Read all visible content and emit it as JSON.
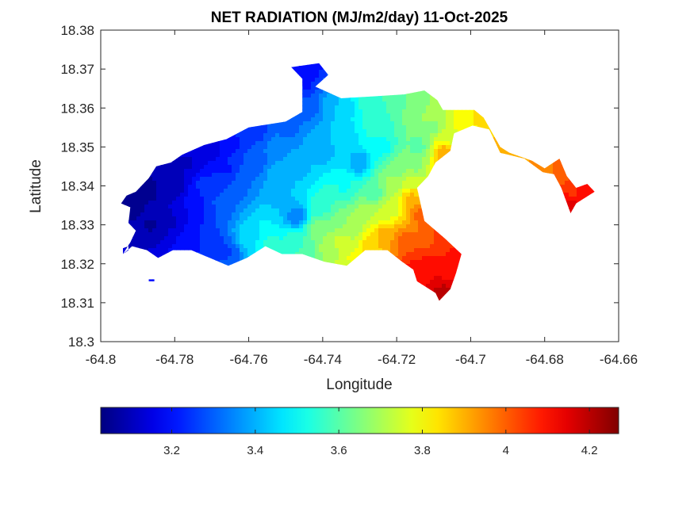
{
  "chart_data": {
    "type": "heatmap",
    "title": "NET RADIATION (MJ/m2/day) 11-Oct-2025",
    "xlabel": "Longitude",
    "ylabel": "Latitude",
    "xlim": [
      -64.8,
      -64.66
    ],
    "ylim": [
      18.3,
      18.38
    ],
    "xticks": [
      "-64.8",
      "-64.78",
      "-64.76",
      "-64.74",
      "-64.72",
      "-64.7",
      "-64.68",
      "-64.66"
    ],
    "yticks": [
      "18.3",
      "18.31",
      "18.32",
      "18.33",
      "18.34",
      "18.35",
      "18.36",
      "18.37",
      "18.38"
    ],
    "grid": false,
    "colormap": "jet",
    "clim": [
      3.03,
      4.27
    ],
    "colorbar": {
      "location": "bottom",
      "ticks": [
        "3.2",
        "3.4",
        "3.6",
        "3.8",
        "4",
        "4.2"
      ]
    },
    "boundary": [
      [
        -64.7905,
        18.3385
      ],
      [
        -64.787,
        18.342
      ],
      [
        -64.785,
        18.345
      ],
      [
        -64.781,
        18.346
      ],
      [
        -64.778,
        18.348
      ],
      [
        -64.772,
        18.3505
      ],
      [
        -64.766,
        18.352
      ],
      [
        -64.76,
        18.355
      ],
      [
        -64.75,
        18.3565
      ],
      [
        -64.7455,
        18.359
      ],
      [
        -64.7455,
        18.3675
      ],
      [
        -64.7485,
        18.3705
      ],
      [
        -64.741,
        18.3715
      ],
      [
        -64.7385,
        18.3685
      ],
      [
        -64.742,
        18.3655
      ],
      [
        -64.735,
        18.3625
      ],
      [
        -64.726,
        18.363
      ],
      [
        -64.718,
        18.3635
      ],
      [
        -64.7125,
        18.3645
      ],
      [
        -64.709,
        18.362
      ],
      [
        -64.7075,
        18.3595
      ],
      [
        -64.699,
        18.3595
      ],
      [
        -64.6965,
        18.3575
      ],
      [
        -64.692,
        18.35
      ],
      [
        -64.6895,
        18.3485
      ],
      [
        -64.6835,
        18.3465
      ],
      [
        -64.68,
        18.3445
      ],
      [
        -64.676,
        18.347
      ],
      [
        -64.674,
        18.3425
      ],
      [
        -64.6715,
        18.3395
      ],
      [
        -64.6685,
        18.3405
      ],
      [
        -64.6665,
        18.3385
      ],
      [
        -64.669,
        18.337
      ],
      [
        -64.6715,
        18.3355
      ],
      [
        -64.673,
        18.333
      ],
      [
        -64.6755,
        18.3395
      ],
      [
        -64.6775,
        18.343
      ],
      [
        -64.6805,
        18.3435
      ],
      [
        -64.6855,
        18.347
      ],
      [
        -64.692,
        18.3485
      ],
      [
        -64.695,
        18.3545
      ],
      [
        -64.6995,
        18.3555
      ],
      [
        -64.7045,
        18.3535
      ],
      [
        -64.7055,
        18.349
      ],
      [
        -64.7095,
        18.346
      ],
      [
        -64.7115,
        18.3425
      ],
      [
        -64.7145,
        18.3395
      ],
      [
        -64.7125,
        18.331
      ],
      [
        -64.707,
        18.3265
      ],
      [
        -64.7025,
        18.3225
      ],
      [
        -64.704,
        18.3175
      ],
      [
        -64.7055,
        18.3135
      ],
      [
        -64.7085,
        18.3105
      ],
      [
        -64.7095,
        18.3125
      ],
      [
        -64.7145,
        18.3155
      ],
      [
        -64.7155,
        18.3185
      ],
      [
        -64.7185,
        18.3205
      ],
      [
        -64.7225,
        18.3235
      ],
      [
        -64.7285,
        18.3235
      ],
      [
        -64.7335,
        18.3195
      ],
      [
        -64.7395,
        18.3205
      ],
      [
        -64.7455,
        18.3225
      ],
      [
        -64.751,
        18.3225
      ],
      [
        -64.7555,
        18.3245
      ],
      [
        -64.7605,
        18.3215
      ],
      [
        -64.7655,
        18.3195
      ],
      [
        -64.7705,
        18.3215
      ],
      [
        -64.7755,
        18.3235
      ],
      [
        -64.7805,
        18.3235
      ],
      [
        -64.7845,
        18.3215
      ],
      [
        -64.7875,
        18.3235
      ],
      [
        -64.7915,
        18.3245
      ],
      [
        -64.794,
        18.3225
      ],
      [
        -64.792,
        18.3255
      ],
      [
        -64.7905,
        18.3285
      ],
      [
        -64.7925,
        18.3305
      ],
      [
        -64.792,
        18.3345
      ],
      [
        -64.7945,
        18.3355
      ],
      [
        -64.793,
        18.3375
      ]
    ],
    "islets": [
      [
        [
          -64.794,
          18.3225
        ],
        [
          -64.7925,
          18.3235
        ],
        [
          -64.7925,
          18.3245
        ],
        [
          -64.794,
          18.324
        ]
      ],
      [
        [
          -64.787,
          18.3155
        ],
        [
          -64.7855,
          18.3155
        ],
        [
          -64.7855,
          18.316
        ],
        [
          -64.787,
          18.316
        ]
      ]
    ],
    "samples": [
      [
        -64.792,
        18.336,
        3.05
      ],
      [
        -64.787,
        18.339,
        3.06
      ],
      [
        -64.782,
        18.344,
        3.08
      ],
      [
        -64.786,
        18.33,
        3.07
      ],
      [
        -64.781,
        18.331,
        3.12
      ],
      [
        -64.776,
        18.326,
        3.2
      ],
      [
        -64.77,
        18.325,
        3.25
      ],
      [
        -64.766,
        18.323,
        3.27
      ],
      [
        -64.776,
        18.346,
        3.12
      ],
      [
        -64.77,
        18.349,
        3.15
      ],
      [
        -64.764,
        18.351,
        3.22
      ],
      [
        -64.758,
        18.354,
        3.25
      ],
      [
        -64.75,
        18.355,
        3.3
      ],
      [
        -64.744,
        18.36,
        3.3
      ],
      [
        -64.744,
        18.366,
        3.22
      ],
      [
        -64.744,
        18.37,
        3.18
      ],
      [
        -64.738,
        18.362,
        3.38
      ],
      [
        -64.734,
        18.36,
        3.46
      ],
      [
        -64.728,
        18.361,
        3.54
      ],
      [
        -64.72,
        18.363,
        3.6
      ],
      [
        -64.714,
        18.362,
        3.66
      ],
      [
        -64.708,
        18.359,
        3.72
      ],
      [
        -64.702,
        18.358,
        3.82
      ],
      [
        -64.697,
        18.357,
        3.84
      ],
      [
        -64.692,
        18.351,
        3.88
      ],
      [
        -64.686,
        18.346,
        3.92
      ],
      [
        -64.681,
        18.345,
        3.95
      ],
      [
        -64.676,
        18.344,
        3.98
      ],
      [
        -64.672,
        18.339,
        4.06
      ],
      [
        -64.669,
        18.339,
        4.12
      ],
      [
        -64.673,
        18.334,
        4.16
      ],
      [
        -64.7,
        18.356,
        3.82
      ],
      [
        -64.707,
        18.349,
        3.92
      ],
      [
        -64.706,
        18.345,
        3.95
      ],
      [
        -64.706,
        18.352,
        3.74
      ],
      [
        -64.71,
        18.355,
        3.66
      ],
      [
        -64.714,
        18.35,
        3.6
      ],
      [
        -64.715,
        18.345,
        3.66
      ],
      [
        -64.716,
        18.341,
        3.75
      ],
      [
        -64.716,
        18.337,
        3.9
      ],
      [
        -64.713,
        18.333,
        4.02
      ],
      [
        -64.708,
        18.329,
        4.04
      ],
      [
        -64.704,
        18.323,
        4.08
      ],
      [
        -64.706,
        18.318,
        4.1
      ],
      [
        -64.708,
        18.313,
        4.18
      ],
      [
        -64.706,
        18.311,
        4.25
      ],
      [
        -64.712,
        18.318,
        4.12
      ],
      [
        -64.716,
        18.32,
        4.08
      ],
      [
        -64.718,
        18.326,
        4.0
      ],
      [
        -64.723,
        18.327,
        3.92
      ],
      [
        -64.727,
        18.325,
        3.86
      ],
      [
        -64.732,
        18.322,
        3.78
      ],
      [
        -64.735,
        18.326,
        3.74
      ],
      [
        -64.738,
        18.324,
        3.72
      ],
      [
        -64.742,
        18.329,
        3.65
      ],
      [
        -64.74,
        18.335,
        3.55
      ],
      [
        -64.734,
        18.339,
        3.52
      ],
      [
        -64.726,
        18.338,
        3.58
      ],
      [
        -64.722,
        18.334,
        3.75
      ],
      [
        -64.728,
        18.333,
        3.72
      ],
      [
        -64.73,
        18.346,
        3.38
      ],
      [
        -64.724,
        18.35,
        3.5
      ],
      [
        -64.726,
        18.355,
        3.54
      ],
      [
        -64.734,
        18.352,
        3.44
      ],
      [
        -64.74,
        18.349,
        3.4
      ],
      [
        -64.746,
        18.344,
        3.42
      ],
      [
        -64.752,
        18.343,
        3.4
      ],
      [
        -64.747,
        18.332,
        3.32
      ],
      [
        -64.752,
        18.336,
        3.42
      ],
      [
        -64.756,
        18.33,
        3.48
      ],
      [
        -64.76,
        18.327,
        3.46
      ],
      [
        -64.754,
        18.325,
        3.54
      ],
      [
        -64.748,
        18.326,
        3.54
      ],
      [
        -64.744,
        18.323,
        3.6
      ],
      [
        -64.762,
        18.34,
        3.32
      ],
      [
        -64.768,
        18.336,
        3.28
      ],
      [
        -64.772,
        18.34,
        3.24
      ],
      [
        -64.776,
        18.336,
        3.18
      ],
      [
        -64.78,
        18.339,
        3.1
      ],
      [
        -64.758,
        18.346,
        3.3
      ],
      [
        -64.752,
        18.35,
        3.36
      ],
      [
        -64.766,
        18.344,
        3.22
      ],
      [
        -64.736,
        18.331,
        3.64
      ],
      [
        -64.732,
        18.329,
        3.7
      ],
      [
        -64.72,
        18.344,
        3.64
      ],
      [
        -64.721,
        18.34,
        3.7
      ]
    ]
  }
}
